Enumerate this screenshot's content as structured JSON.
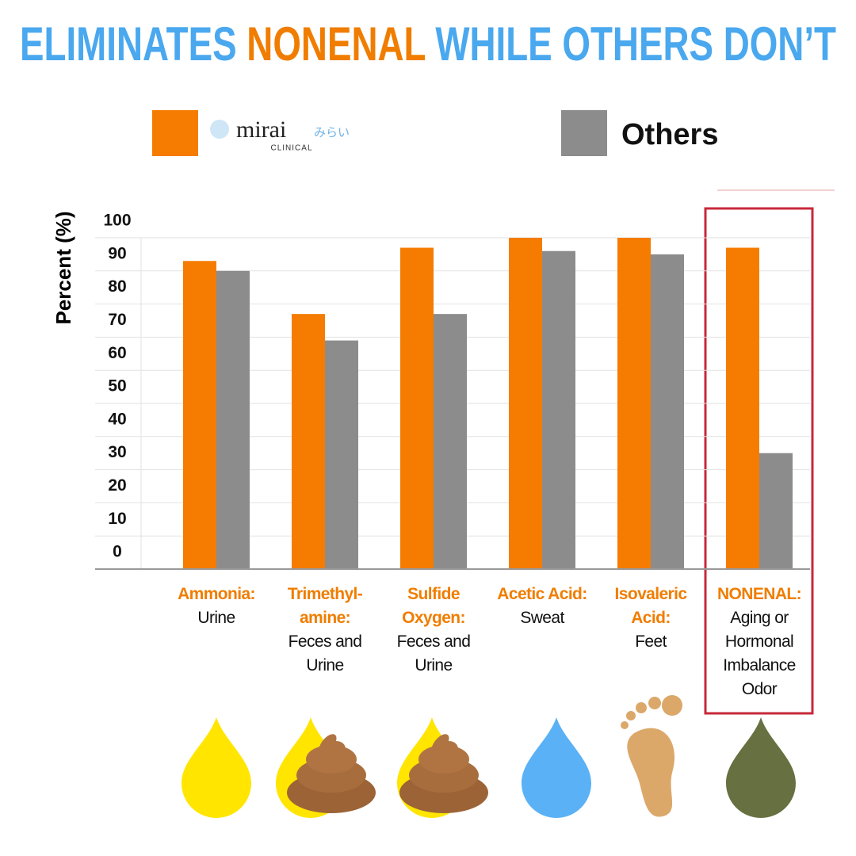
{
  "chart_data": {
    "type": "bar",
    "title_parts": [
      {
        "text": "ELIMINATES",
        "color": "#4aa8ef"
      },
      {
        "text": "NONENAL",
        "color": "#f07d00"
      },
      {
        "text": "WHILE OTHERS DON’T",
        "color": "#4aa8ef"
      }
    ],
    "y_label": "Percent (%)",
    "categories": [
      "Ammonia:",
      "Trimethyl-amine:",
      "Sulfide Oxygen:",
      "Acetic Acid:",
      "Isovaleric Acid:",
      "NONENAL:"
    ],
    "category_notes": [
      "Urine",
      "Feces and Urine",
      "Feces and Urine",
      "Sweat",
      "Feet",
      "Aging or Hormonal Imbalance Odor"
    ],
    "series": [
      {
        "name": "mirai",
        "color": "#f57c00",
        "values": [
          93,
          77,
          97,
          100,
          100,
          97
        ]
      },
      {
        "name": "Others",
        "color": "#8c8c8c",
        "values": [
          90,
          69,
          77,
          96,
          95,
          35
        ]
      }
    ],
    "legend_logo": {
      "kana": "みらい",
      "subtext": "CLINICAL"
    },
    "highlight_category": 5,
    "ylim": [
      0,
      100
    ],
    "yticks": [
      0,
      10,
      20,
      30,
      40,
      50,
      60,
      70,
      80,
      90,
      100
    ],
    "grid": true
  }
}
